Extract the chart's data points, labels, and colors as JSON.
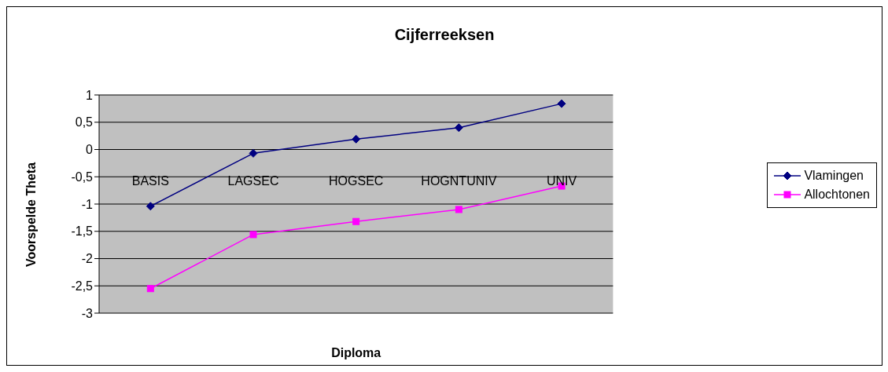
{
  "chart_data": {
    "type": "line",
    "title": "Cijferreeksen",
    "xlabel": "Diploma",
    "ylabel": "Voorspelde Theta",
    "categories": [
      "BASIS",
      "LAGSEC",
      "HOGSEC",
      "HOGNTUNIV",
      "UNIV"
    ],
    "series": [
      {
        "name": "Vlamingen",
        "color": "#000080",
        "marker": "diamond",
        "values": [
          -1.04,
          -0.07,
          0.19,
          0.4,
          0.84
        ]
      },
      {
        "name": "Allochtonen",
        "color": "#ff00ff",
        "marker": "square",
        "values": [
          -2.55,
          -1.56,
          -1.32,
          -1.1,
          -0.67
        ]
      }
    ],
    "ylim": [
      -3,
      1
    ],
    "yticks": [
      {
        "value": -3,
        "label": "-3"
      },
      {
        "value": -2.5,
        "label": "-2,5"
      },
      {
        "value": -2,
        "label": "-2"
      },
      {
        "value": -1.5,
        "label": "-1,5"
      },
      {
        "value": -1,
        "label": "-1"
      },
      {
        "value": -0.5,
        "label": "-0,5"
      },
      0,
      {
        "value": 0.5,
        "label": "0,5"
      },
      1
    ],
    "grid": "y",
    "legend": "right",
    "line_style": "solid"
  }
}
